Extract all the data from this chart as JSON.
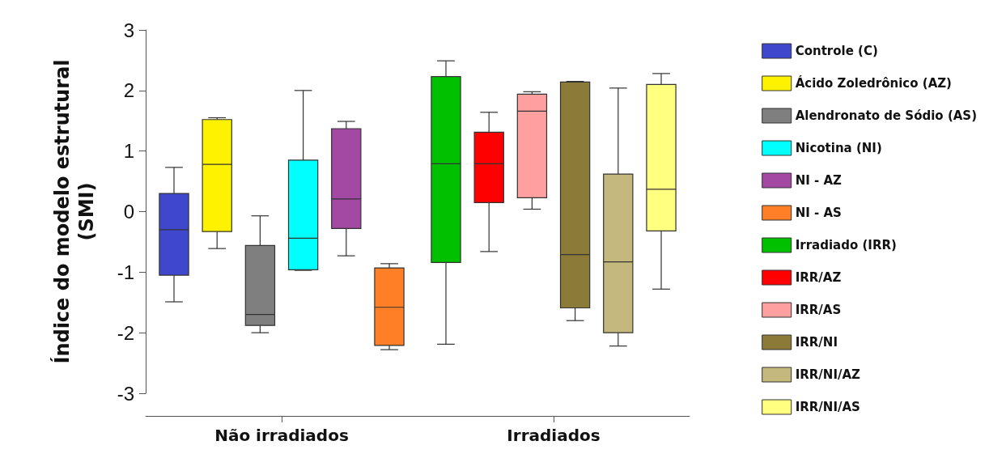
{
  "chart_data": {
    "type": "box",
    "ylabel": "Índice do modelo estrutural\n(SMI)",
    "categories": [
      "Não irradiados",
      "Irradiados"
    ],
    "ylim": [
      -3,
      3
    ],
    "yticks": [
      -3,
      -2,
      -1,
      0,
      1,
      2,
      3
    ],
    "grid": false,
    "legend": "right",
    "series": [
      {
        "name": "Controle (C)",
        "color": "#3f48cc",
        "boxes": [
          {
            "low": -1.49,
            "q1": -1.05,
            "median": -0.3,
            "q3": 0.3,
            "high": 0.73
          },
          null
        ]
      },
      {
        "name": "Ácido Zoledrônico (AZ)",
        "color": "#fff200",
        "boxes": [
          {
            "low": -0.61,
            "q1": -0.33,
            "median": 0.78,
            "q3": 1.52,
            "high": 1.55
          },
          null
        ]
      },
      {
        "name": "Alendronato de Sódio (AS)",
        "color": "#7f7f7f",
        "boxes": [
          {
            "low": -2.0,
            "q1": -1.88,
            "median": -1.7,
            "q3": -0.56,
            "high": -0.07
          },
          null
        ]
      },
      {
        "name": "Nicotina (NI)",
        "color": "#00ffff",
        "boxes": [
          {
            "low": -0.97,
            "q1": -0.96,
            "median": -0.44,
            "q3": 0.85,
            "high": 2.0
          },
          null
        ]
      },
      {
        "name": "NI - AZ",
        "color": "#a349a4",
        "boxes": [
          {
            "low": -0.73,
            "q1": -0.28,
            "median": 0.21,
            "q3": 1.37,
            "high": 1.49
          },
          null
        ]
      },
      {
        "name": "NI - AS",
        "color": "#ff7f27",
        "boxes": [
          {
            "low": -2.28,
            "q1": -2.21,
            "median": -1.58,
            "q3": -0.93,
            "high": -0.86
          },
          null
        ]
      },
      {
        "name": "Irradiado (IRR)",
        "color": "#00c000",
        "boxes": [
          null,
          {
            "low": -2.19,
            "q1": -0.84,
            "median": 0.79,
            "q3": 2.23,
            "high": 2.49
          }
        ]
      },
      {
        "name": "IRR/AZ",
        "color": "#ff0000",
        "boxes": [
          null,
          {
            "low": -0.66,
            "q1": 0.15,
            "median": 0.79,
            "q3": 1.31,
            "high": 1.64
          }
        ]
      },
      {
        "name": "IRR/AS",
        "color": "#ff9f9f",
        "boxes": [
          null,
          {
            "low": 0.04,
            "q1": 0.23,
            "median": 1.66,
            "q3": 1.94,
            "high": 1.98
          }
        ]
      },
      {
        "name": "IRR/NI",
        "color": "#8c7a38",
        "boxes": [
          null,
          {
            "low": -1.8,
            "q1": -1.59,
            "median": -0.71,
            "q3": 2.14,
            "high": 2.15
          }
        ]
      },
      {
        "name": "IRR/NI/AZ",
        "color": "#c4b87c",
        "boxes": [
          null,
          {
            "low": -2.22,
            "q1": -2.0,
            "median": -0.83,
            "q3": 0.62,
            "high": 2.04
          }
        ]
      },
      {
        "name": "IRR/NI/AS",
        "color": "#ffff80",
        "boxes": [
          null,
          {
            "low": -1.28,
            "q1": -0.32,
            "median": 0.37,
            "q3": 2.1,
            "high": 2.28
          }
        ]
      }
    ]
  }
}
